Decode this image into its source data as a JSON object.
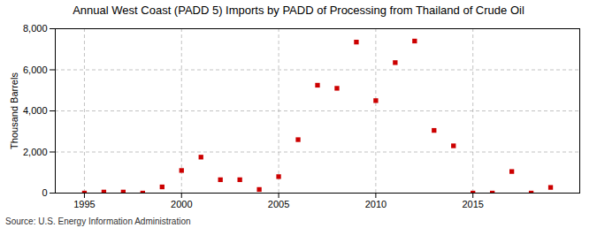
{
  "chart_data": {
    "type": "scatter",
    "title": "Annual West Coast (PADD 5) Imports by PADD of Processing from Thailand of Crude Oil",
    "ylabel": "Thousand Barrels",
    "source": "Source: U.S. Energy Information Administration",
    "x": [
      1995,
      1996,
      1997,
      1998,
      1999,
      2000,
      2001,
      2002,
      2003,
      2004,
      2005,
      2006,
      2007,
      2008,
      2009,
      2010,
      2011,
      2012,
      2013,
      2014,
      2015,
      2016,
      2017,
      2018,
      2019
    ],
    "values": [
      0,
      50,
      50,
      0,
      300,
      1100,
      1750,
      650,
      650,
      175,
      800,
      2600,
      5250,
      5100,
      7350,
      4500,
      6350,
      7400,
      3050,
      2300,
      0,
      0,
      1050,
      0,
      275
    ],
    "color": "#cc0000",
    "marker": "square",
    "xlim": [
      1993.5,
      2020.5
    ],
    "xticks": [
      1995,
      2000,
      2005,
      2010,
      2015
    ],
    "ylim": [
      0,
      8000
    ],
    "yticks": [
      0,
      {
        "value": 2000,
        "label": "2,000"
      },
      {
        "value": 4000,
        "label": "4,000"
      },
      {
        "value": 6000,
        "label": "6,000"
      },
      {
        "value": 8000,
        "label": "8,000"
      }
    ],
    "grid": true
  }
}
